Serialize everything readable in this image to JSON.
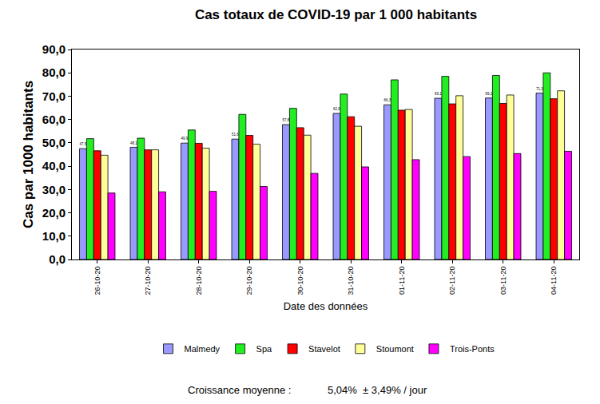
{
  "chart_data": {
    "type": "bar",
    "title": "Cas totaux de COVID-19 par 1 000 habitants",
    "x_label": "Date des données",
    "y_label": "Cas par 1000 habitants",
    "categories": [
      "26-10-20",
      "27-10-20",
      "28-10-20",
      "29-10-20",
      "30-10-20",
      "31-10-20",
      "01-11-20",
      "02-11-20",
      "03-11-20",
      "04-11-20"
    ],
    "series": [
      {
        "name": "Malmedy",
        "color": "#9999ff",
        "values": [
          47.5,
          48.1,
          49.9,
          51.6,
          57.8,
          62.6,
          66.3,
          69.1,
          69.2,
          71.3
        ],
        "data_labels": true,
        "value_labels": [
          "47,5",
          "48,1",
          "49,9",
          "51,6",
          "57,8",
          "62,6",
          "66,3",
          "69,1",
          "69,2",
          "71,3"
        ]
      },
      {
        "name": "Spa",
        "color": "#22ee22",
        "values": [
          51.8,
          52.0,
          55.5,
          62.2,
          64.8,
          70.9,
          77.0,
          78.5,
          78.9,
          80.0
        ]
      },
      {
        "name": "Stavelot",
        "color": "#ff0000",
        "values": [
          46.6,
          47.0,
          49.8,
          53.2,
          56.5,
          61.2,
          64.0,
          66.7,
          66.9,
          68.9
        ]
      },
      {
        "name": "Stoumont",
        "color": "#ffff99",
        "values": [
          44.7,
          47.0,
          47.7,
          49.4,
          53.3,
          57.1,
          64.3,
          70.2,
          70.5,
          72.3
        ]
      },
      {
        "name": "Trois-Ponts",
        "color": "#ff00ff",
        "values": [
          28.5,
          29.0,
          29.2,
          31.3,
          36.9,
          39.7,
          42.8,
          44.1,
          45.4,
          46.4
        ]
      }
    ],
    "ylim": [
      0,
      90
    ],
    "yticks": [
      {
        "value": 0,
        "label": "0,0"
      },
      {
        "value": 10,
        "label": "10,0"
      },
      {
        "value": 20,
        "label": "20,0"
      },
      {
        "value": 30,
        "label": "30,0"
      },
      {
        "value": 40,
        "label": "40,0"
      },
      {
        "value": 50,
        "label": "50,0"
      },
      {
        "value": 60,
        "label": "60,0"
      },
      {
        "value": 70,
        "label": "70,0"
      },
      {
        "value": 80,
        "label": "80,0"
      },
      {
        "value": 90,
        "label": "90,0"
      }
    ],
    "grid": false,
    "legend": "bottom",
    "annotations": [
      "Croissance moyenne :",
      "5,04%  ± 3,49% / jour"
    ]
  }
}
